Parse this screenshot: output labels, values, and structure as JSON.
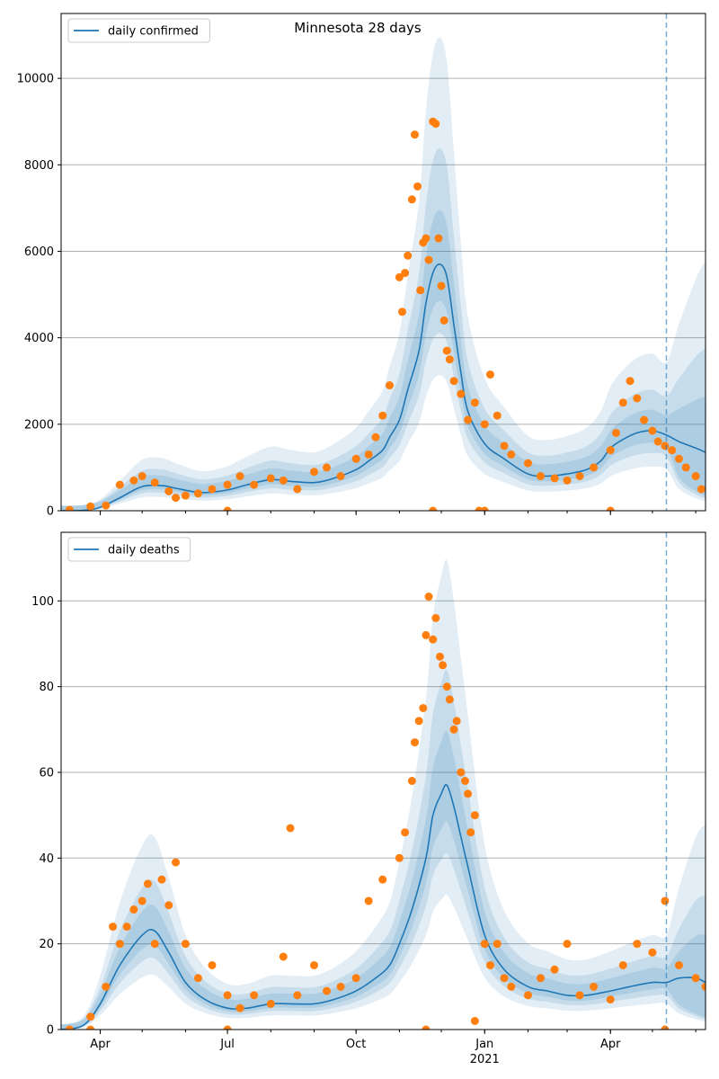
{
  "figure": {
    "title": "Minnesota 28 days"
  },
  "colors": {
    "line": "#1f77b4",
    "points": "#ff7f0e",
    "band": "#1f77b4",
    "grid": "#b0b0b0",
    "vline": "#1f77b4"
  },
  "x_axis": {
    "tick_labels": [
      "Apr",
      "Jul",
      "Oct",
      "Jan",
      "Apr"
    ],
    "tick_dates": [
      "2020-04-01",
      "2020-07-01",
      "2020-10-01",
      "2021-01-01",
      "2021-04-01"
    ],
    "year_label": "2021",
    "range": [
      "2020-03-04",
      "2021-06-08"
    ],
    "forecast_marker_date": "2021-05-11"
  },
  "chart_data": [
    {
      "type": "line",
      "legend": [
        "daily confirmed"
      ],
      "legend_position": "top-left",
      "grid": "y",
      "ylim": [
        0,
        11500
      ],
      "yticks": [
        0,
        2000,
        4000,
        6000,
        8000,
        10000
      ],
      "series": [
        {
          "name": "daily confirmed",
          "style": "line",
          "x": [
            "2020-03-04",
            "2020-03-20",
            "2020-04-01",
            "2020-04-15",
            "2020-05-01",
            "2020-05-15",
            "2020-05-25",
            "2020-06-05",
            "2020-06-15",
            "2020-07-01",
            "2020-07-15",
            "2020-08-01",
            "2020-08-15",
            "2020-09-01",
            "2020-09-15",
            "2020-10-01",
            "2020-10-10",
            "2020-10-20",
            "2020-10-25",
            "2020-11-01",
            "2020-11-07",
            "2020-11-15",
            "2020-11-20",
            "2020-11-25",
            "2020-11-30",
            "2020-12-05",
            "2020-12-10",
            "2020-12-15",
            "2020-12-20",
            "2021-01-01",
            "2021-01-15",
            "2021-02-01",
            "2021-02-15",
            "2021-03-01",
            "2021-03-15",
            "2021-03-25",
            "2021-04-01",
            "2021-04-10",
            "2021-04-20",
            "2021-05-01",
            "2021-05-11",
            "2021-05-20",
            "2021-06-01",
            "2021-06-08"
          ],
          "y": [
            0,
            10,
            80,
            300,
            560,
            580,
            520,
            450,
            420,
            480,
            600,
            720,
            680,
            650,
            750,
            950,
            1150,
            1400,
            1700,
            2100,
            2800,
            3700,
            4800,
            5500,
            5700,
            5400,
            4300,
            3200,
            2300,
            1550,
            1200,
            850,
            800,
            850,
            950,
            1150,
            1450,
            1650,
            1800,
            1850,
            1750,
            1600,
            1450,
            1350
          ]
        },
        {
          "name": "",
          "style": "scatter",
          "x": [
            "2020-03-10",
            "2020-03-25",
            "2020-04-05",
            "2020-04-15",
            "2020-04-25",
            "2020-05-01",
            "2020-05-10",
            "2020-05-20",
            "2020-05-25",
            "2020-06-01",
            "2020-06-10",
            "2020-06-20",
            "2020-07-01",
            "2020-07-01",
            "2020-07-10",
            "2020-07-20",
            "2020-08-01",
            "2020-08-10",
            "2020-08-20",
            "2020-09-01",
            "2020-09-10",
            "2020-09-20",
            "2020-10-01",
            "2020-10-10",
            "2020-10-15",
            "2020-10-20",
            "2020-10-25",
            "2020-11-01",
            "2020-11-03",
            "2020-11-05",
            "2020-11-07",
            "2020-11-10",
            "2020-11-12",
            "2020-11-14",
            "2020-11-16",
            "2020-11-18",
            "2020-11-20",
            "2020-11-22",
            "2020-11-25",
            "2020-11-27",
            "2020-11-29",
            "2020-12-01",
            "2020-12-03",
            "2020-12-05",
            "2020-12-07",
            "2020-12-10",
            "2020-12-15",
            "2020-12-20",
            "2020-12-25",
            "2021-01-01",
            "2021-01-05",
            "2021-01-10",
            "2021-01-15",
            "2021-01-20",
            "2021-02-01",
            "2021-02-10",
            "2021-02-20",
            "2021-03-01",
            "2021-03-10",
            "2021-03-20",
            "2021-04-01",
            "2021-04-05",
            "2021-04-10",
            "2021-04-15",
            "2021-04-20",
            "2021-04-25",
            "2021-05-01",
            "2021-05-05",
            "2021-05-10",
            "2021-05-15",
            "2021-05-20",
            "2021-05-25",
            "2021-06-01",
            "2021-06-05",
            "2020-11-25",
            "2020-12-28",
            "2021-01-01",
            "2021-04-01"
          ],
          "y": [
            20,
            100,
            120,
            600,
            700,
            800,
            650,
            450,
            300,
            350,
            400,
            500,
            0,
            600,
            800,
            600,
            750,
            700,
            500,
            900,
            1000,
            800,
            1200,
            1300,
            1700,
            2200,
            2900,
            5400,
            4600,
            5500,
            5900,
            7200,
            8700,
            7500,
            5100,
            6200,
            6300,
            5800,
            9000,
            8950,
            6300,
            5200,
            4400,
            3700,
            3500,
            3000,
            2700,
            2100,
            2500,
            2000,
            3150,
            2200,
            1500,
            1300,
            1100,
            800,
            750,
            700,
            800,
            1000,
            1400,
            1800,
            2500,
            3000,
            2600,
            2100,
            1850,
            1600,
            1500,
            1400,
            1200,
            1000,
            800,
            500,
            0,
            0,
            0,
            0
          ]
        }
      ]
    },
    {
      "type": "line",
      "legend": [
        "daily deaths"
      ],
      "legend_position": "top-left",
      "grid": "y",
      "ylim": [
        0,
        116
      ],
      "yticks": [
        0,
        20,
        40,
        60,
        80,
        100
      ],
      "series": [
        {
          "name": "daily deaths",
          "style": "line",
          "x": [
            "2020-03-04",
            "2020-03-20",
            "2020-04-01",
            "2020-04-15",
            "2020-05-01",
            "2020-05-10",
            "2020-05-20",
            "2020-06-01",
            "2020-06-15",
            "2020-07-01",
            "2020-07-15",
            "2020-08-01",
            "2020-08-15",
            "2020-09-01",
            "2020-09-15",
            "2020-10-01",
            "2020-10-15",
            "2020-10-25",
            "2020-11-01",
            "2020-11-10",
            "2020-11-20",
            "2020-11-25",
            "2020-12-01",
            "2020-12-05",
            "2020-12-10",
            "2020-12-15",
            "2020-12-20",
            "2021-01-01",
            "2021-01-15",
            "2021-02-01",
            "2021-02-15",
            "2021-03-01",
            "2021-03-15",
            "2021-04-01",
            "2021-04-15",
            "2021-05-01",
            "2021-05-11",
            "2021-05-20",
            "2021-06-01",
            "2021-06-08"
          ],
          "y": [
            0,
            1,
            6,
            15,
            22,
            23,
            18,
            11,
            7,
            5,
            5,
            6,
            6,
            6,
            7,
            9,
            12,
            15,
            20,
            28,
            40,
            50,
            55,
            57,
            52,
            45,
            38,
            22,
            14,
            10,
            9,
            8,
            8,
            9,
            10,
            11,
            11,
            12,
            12,
            11
          ]
        },
        {
          "name": "",
          "style": "scatter",
          "x": [
            "2020-03-10",
            "2020-03-25",
            "2020-04-05",
            "2020-04-10",
            "2020-04-15",
            "2020-04-20",
            "2020-04-25",
            "2020-05-01",
            "2020-05-05",
            "2020-05-10",
            "2020-05-15",
            "2020-05-20",
            "2020-05-25",
            "2020-06-01",
            "2020-06-10",
            "2020-06-20",
            "2020-07-01",
            "2020-07-10",
            "2020-07-20",
            "2020-08-01",
            "2020-08-10",
            "2020-08-15",
            "2020-08-20",
            "2020-09-01",
            "2020-09-10",
            "2020-09-20",
            "2020-10-01",
            "2020-10-10",
            "2020-10-20",
            "2020-11-01",
            "2020-11-05",
            "2020-11-10",
            "2020-11-12",
            "2020-11-15",
            "2020-11-18",
            "2020-11-20",
            "2020-11-22",
            "2020-11-25",
            "2020-11-27",
            "2020-11-30",
            "2020-12-02",
            "2020-12-05",
            "2020-12-07",
            "2020-12-10",
            "2020-12-12",
            "2020-12-15",
            "2020-12-18",
            "2020-12-20",
            "2020-12-22",
            "2020-12-25",
            "2021-01-01",
            "2021-01-05",
            "2021-01-10",
            "2021-01-15",
            "2021-01-20",
            "2021-02-01",
            "2021-02-10",
            "2021-02-20",
            "2021-03-01",
            "2021-03-10",
            "2021-03-20",
            "2021-04-01",
            "2021-04-10",
            "2021-04-20",
            "2021-05-01",
            "2021-05-10",
            "2021-05-20",
            "2021-06-01",
            "2021-06-08",
            "2020-03-25",
            "2020-07-01",
            "2020-11-20",
            "2020-12-25",
            "2021-05-10"
          ],
          "y": [
            0,
            3,
            10,
            24,
            20,
            24,
            28,
            30,
            34,
            20,
            35,
            29,
            39,
            20,
            12,
            15,
            8,
            5,
            8,
            6,
            17,
            47,
            8,
            15,
            9,
            10,
            12,
            30,
            35,
            40,
            46,
            58,
            67,
            72,
            75,
            92,
            101,
            91,
            96,
            87,
            85,
            80,
            77,
            70,
            72,
            60,
            58,
            55,
            46,
            50,
            20,
            15,
            20,
            12,
            10,
            8,
            12,
            14,
            20,
            8,
            10,
            7,
            15,
            20,
            18,
            30,
            15,
            12,
            10,
            0,
            0,
            0,
            2,
            0
          ]
        }
      ]
    }
  ]
}
